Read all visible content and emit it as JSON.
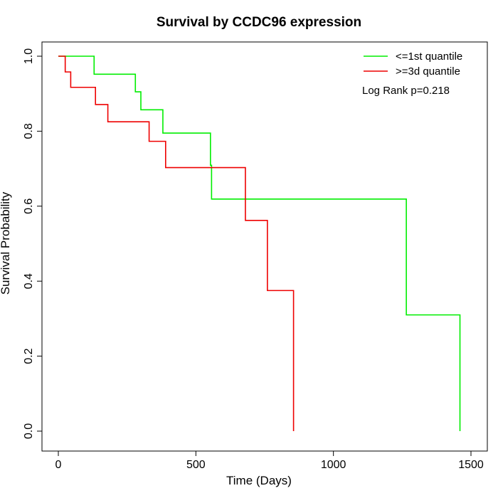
{
  "chart_data": {
    "type": "line",
    "title": "Survival by CCDC96 expression",
    "xlabel": "Time (Days)",
    "ylabel": "Survival Probability",
    "xlim": [
      0,
      1500
    ],
    "ylim": [
      0,
      1
    ],
    "x_ticks": [
      0,
      500,
      1000,
      1500
    ],
    "y_ticks": [
      0.0,
      0.2,
      0.4,
      0.6,
      0.8,
      1.0
    ],
    "x_tick_labels": [
      "0",
      "500",
      "1000",
      "1500"
    ],
    "y_tick_labels": [
      "0.0",
      "0.2",
      "0.4",
      "0.6",
      "0.8",
      "1.0"
    ],
    "legend_position": "top-right",
    "grid": false,
    "annotation": "Log Rank p=0.218",
    "series": [
      {
        "name": "<=1st quantile",
        "color": "#00ee00",
        "step": true,
        "points": [
          [
            0,
            1.0
          ],
          [
            130,
            0.952
          ],
          [
            280,
            0.905
          ],
          [
            300,
            0.857
          ],
          [
            380,
            0.795
          ],
          [
            553,
            0.709
          ],
          [
            557,
            0.619
          ],
          [
            1265,
            0.31
          ],
          [
            1460,
            0.0
          ]
        ]
      },
      {
        "name": ">=3d quantile",
        "color": "#ee0000",
        "step": true,
        "points": [
          [
            0,
            1.0
          ],
          [
            25,
            0.958
          ],
          [
            45,
            0.917
          ],
          [
            135,
            0.871
          ],
          [
            180,
            0.825
          ],
          [
            330,
            0.773
          ],
          [
            390,
            0.703
          ],
          [
            680,
            0.562
          ],
          [
            760,
            0.375
          ],
          [
            855,
            0.0
          ]
        ]
      }
    ]
  }
}
